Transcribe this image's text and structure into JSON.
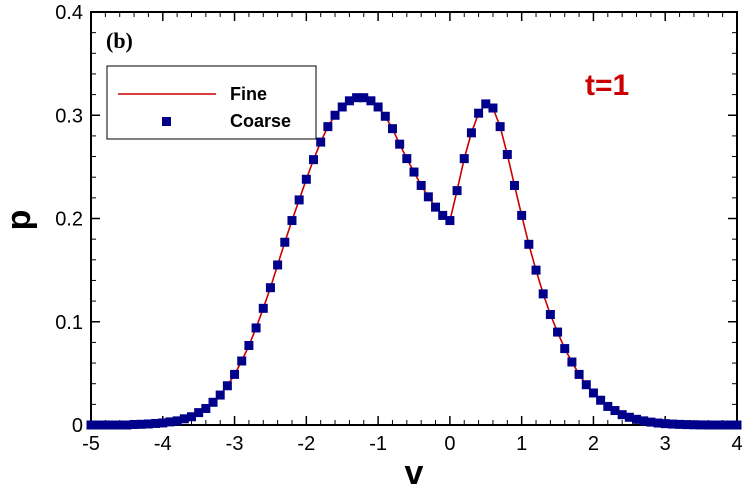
{
  "chart_data": {
    "type": "line",
    "panel_label": "(b)",
    "annotation": "t=1",
    "xlabel": "v",
    "ylabel": "p",
    "xlim": [
      -5,
      4
    ],
    "ylim": [
      0,
      0.4
    ],
    "x_ticks": [
      -5,
      -4,
      -3,
      -2,
      -1,
      0,
      1,
      2,
      3,
      4
    ],
    "x_tick_labels": [
      "-5",
      "-4",
      "-3",
      "-2",
      "-1",
      "0",
      "1",
      "2",
      "3",
      "4"
    ],
    "y_ticks": [
      0,
      0.1,
      0.2,
      0.3,
      0.4
    ],
    "y_tick_labels": [
      "0",
      "0.1",
      "0.2",
      "0.3",
      "0.4"
    ],
    "legend_position": "top-left",
    "colors": {
      "fine": "#cc0000",
      "coarse": "#00008b",
      "annotation": "#cc0000"
    },
    "series": [
      {
        "name": "Fine",
        "style": "line",
        "x": [
          -5.0,
          -4.8,
          -4.6,
          -4.4,
          -4.2,
          -4.0,
          -3.9,
          -3.8,
          -3.7,
          -3.6,
          -3.5,
          -3.4,
          -3.3,
          -3.2,
          -3.1,
          -3.0,
          -2.9,
          -2.8,
          -2.7,
          -2.6,
          -2.5,
          -2.4,
          -2.3,
          -2.2,
          -2.1,
          -2.0,
          -1.9,
          -1.8,
          -1.7,
          -1.6,
          -1.5,
          -1.4,
          -1.3,
          -1.2,
          -1.1,
          -1.0,
          -0.9,
          -0.8,
          -0.7,
          -0.6,
          -0.5,
          -0.4,
          -0.3,
          -0.2,
          -0.1,
          0.0,
          0.1,
          0.2,
          0.3,
          0.4,
          0.5,
          0.6,
          0.7,
          0.8,
          0.9,
          1.0,
          1.1,
          1.2,
          1.3,
          1.4,
          1.5,
          1.6,
          1.7,
          1.8,
          1.9,
          2.0,
          2.1,
          2.2,
          2.3,
          2.4,
          2.5,
          2.6,
          2.7,
          2.8,
          2.9,
          3.0,
          3.2,
          3.4,
          3.6,
          3.8,
          4.0
        ],
        "y": [
          0.0,
          0.0,
          0.0,
          0.0005,
          0.001,
          0.002,
          0.003,
          0.004,
          0.006,
          0.008,
          0.012,
          0.016,
          0.022,
          0.029,
          0.038,
          0.049,
          0.062,
          0.077,
          0.094,
          0.113,
          0.133,
          0.155,
          0.177,
          0.198,
          0.218,
          0.238,
          0.257,
          0.274,
          0.289,
          0.3,
          0.308,
          0.314,
          0.317,
          0.317,
          0.314,
          0.308,
          0.299,
          0.287,
          0.272,
          0.258,
          0.245,
          0.232,
          0.221,
          0.211,
          0.203,
          0.198,
          0.227,
          0.258,
          0.283,
          0.302,
          0.311,
          0.307,
          0.289,
          0.262,
          0.232,
          0.203,
          0.175,
          0.15,
          0.127,
          0.107,
          0.09,
          0.074,
          0.061,
          0.049,
          0.039,
          0.031,
          0.024,
          0.018,
          0.014,
          0.01,
          0.0075,
          0.0055,
          0.004,
          0.0028,
          0.0019,
          0.0013,
          0.0007,
          0.0003,
          0.0001,
          0.0,
          0.0
        ]
      },
      {
        "name": "Coarse",
        "style": "markers",
        "x": [
          -5.0,
          -4.9,
          -4.8,
          -4.7,
          -4.6,
          -4.5,
          -4.4,
          -4.3,
          -4.2,
          -4.1,
          -4.0,
          -3.9,
          -3.8,
          -3.7,
          -3.6,
          -3.5,
          -3.4,
          -3.3,
          -3.2,
          -3.1,
          -3.0,
          -2.9,
          -2.8,
          -2.7,
          -2.6,
          -2.5,
          -2.4,
          -2.3,
          -2.2,
          -2.1,
          -2.0,
          -1.9,
          -1.8,
          -1.7,
          -1.6,
          -1.5,
          -1.4,
          -1.3,
          -1.2,
          -1.1,
          -1.0,
          -0.9,
          -0.8,
          -0.7,
          -0.6,
          -0.5,
          -0.4,
          -0.3,
          -0.2,
          -0.1,
          0.0,
          0.1,
          0.2,
          0.3,
          0.4,
          0.5,
          0.6,
          0.7,
          0.8,
          0.9,
          1.0,
          1.1,
          1.2,
          1.3,
          1.4,
          1.5,
          1.6,
          1.7,
          1.8,
          1.9,
          2.0,
          2.1,
          2.2,
          2.3,
          2.4,
          2.5,
          2.6,
          2.7,
          2.8,
          2.9,
          3.0,
          3.1,
          3.2,
          3.3,
          3.4,
          3.5,
          3.6,
          3.7,
          3.8,
          3.9,
          4.0
        ],
        "y": [
          0.0,
          0.0,
          0.0,
          0.0,
          0.0,
          0.0,
          0.0005,
          0.0007,
          0.001,
          0.0015,
          0.002,
          0.003,
          0.004,
          0.006,
          0.008,
          0.012,
          0.016,
          0.022,
          0.029,
          0.038,
          0.049,
          0.062,
          0.077,
          0.094,
          0.113,
          0.133,
          0.155,
          0.177,
          0.198,
          0.218,
          0.238,
          0.257,
          0.274,
          0.289,
          0.3,
          0.308,
          0.314,
          0.317,
          0.317,
          0.314,
          0.308,
          0.299,
          0.287,
          0.272,
          0.258,
          0.245,
          0.232,
          0.221,
          0.211,
          0.203,
          0.198,
          0.227,
          0.258,
          0.283,
          0.302,
          0.311,
          0.307,
          0.289,
          0.262,
          0.232,
          0.203,
          0.175,
          0.15,
          0.127,
          0.107,
          0.09,
          0.074,
          0.061,
          0.049,
          0.039,
          0.031,
          0.024,
          0.018,
          0.014,
          0.01,
          0.0075,
          0.0055,
          0.004,
          0.0028,
          0.0019,
          0.0013,
          0.0009,
          0.0006,
          0.0004,
          0.0002,
          0.0001,
          0.0,
          0.0,
          0.0,
          0.0,
          0.0
        ]
      }
    ]
  }
}
